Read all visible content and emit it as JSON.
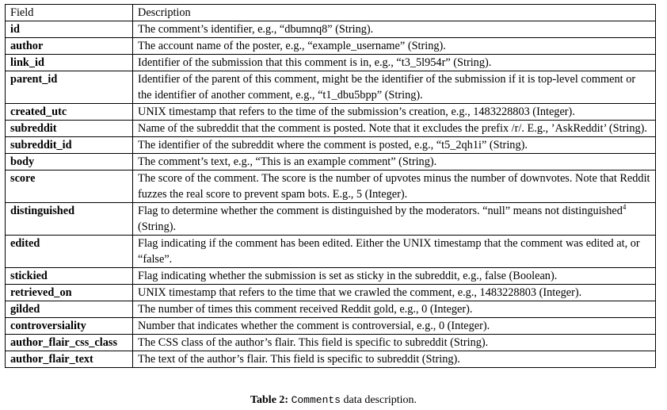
{
  "table": {
    "header": {
      "field": "Field",
      "description": "Description"
    },
    "rows": [
      {
        "field": "id",
        "description": "The comment’s identifier, e.g., “dbumnq8” (String)."
      },
      {
        "field": "author",
        "description": "The account name of the poster, e.g., “example_username” (String)."
      },
      {
        "field": "link_id",
        "description": "Identifier of the submission that this comment is in, e.g., “t3_5l954r” (String)."
      },
      {
        "field": "parent_id",
        "description": "Identifier of the parent of this comment, might be the identifier of the submission if it is top-level comment or the identifier of another comment, e.g., “t1_dbu5bpp” (String)."
      },
      {
        "field": "created_utc",
        "description": "UNIX timestamp that refers to the time of the submission’s creation, e.g., 1483228803 (Integer)."
      },
      {
        "field": "subreddit",
        "description": "Name of the subreddit that the comment is posted. Note that it excludes the prefix /r/. E.g., ’AskReddit’ (String)."
      },
      {
        "field": "subreddit_id",
        "description": "The identifier of the subreddit where the comment is posted, e.g., “t5_2qh1i” (String)."
      },
      {
        "field": "body",
        "description": "The comment’s text, e.g., “This is an example comment” (String)."
      },
      {
        "field": "score",
        "description": "The score of the comment. The score is the number of upvotes minus the number of downvotes. Note that Reddit fuzzes the real score to prevent spam bots. E.g., 5 (Integer)."
      },
      {
        "field": "distinguished",
        "description": "Flag to determine whether the comment is distinguished by the moderators. “null” means not distinguished",
        "footnote": "4",
        "description_tail": " (String)."
      },
      {
        "field": "edited",
        "description": "Flag indicating if the comment has been edited. Either the UNIX timestamp that the comment was edited at, or “false”."
      },
      {
        "field": "stickied",
        "description": "Flag indicating whether the submission is set as sticky in the subreddit, e.g., false (Boolean)."
      },
      {
        "field": "retrieved_on",
        "description": "UNIX timestamp that refers to the time that we crawled the comment, e.g., 1483228803 (Integer)."
      },
      {
        "field": "gilded",
        "description": "The number of times this comment received Reddit gold, e.g., 0 (Integer)."
      },
      {
        "field": "controversiality",
        "description": "Number that indicates whether the comment is controversial, e.g., 0 (Integer)."
      },
      {
        "field": "author_flair_css_class",
        "description": "The CSS class of the author’s flair. This field is specific to subreddit (String)."
      },
      {
        "field": "author_flair_text",
        "description": "The text of the author’s flair. This field is specific to subreddit (String)."
      }
    ]
  },
  "caption": {
    "label": "Table 2:",
    "code": "Comments",
    "text": "data description."
  }
}
